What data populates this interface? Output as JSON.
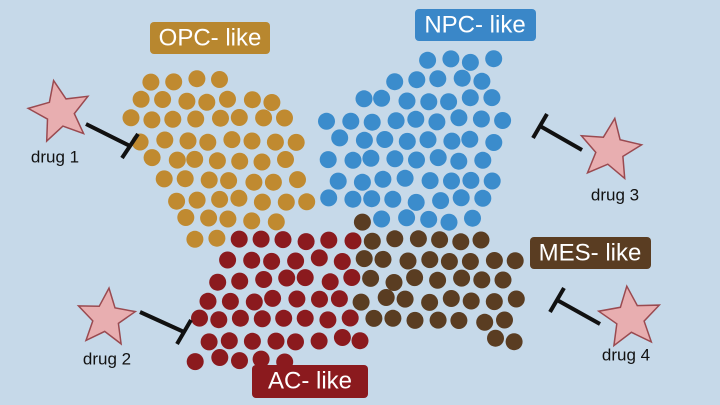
{
  "clusters": [
    {
      "label": "OPC- like"
    },
    {
      "label": "NPC- like"
    },
    {
      "label": "AC- like"
    },
    {
      "label": "MES- like"
    }
  ],
  "drugs": [
    {
      "label": "drug 1"
    },
    {
      "label": "drug 2"
    },
    {
      "label": "drug 3"
    },
    {
      "label": "drug 4"
    }
  ]
}
